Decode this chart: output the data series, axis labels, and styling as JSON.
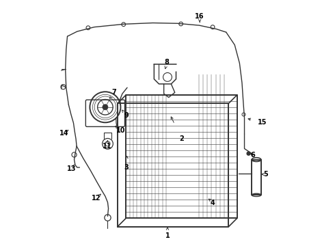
{
  "bg_color": "#ffffff",
  "line_color": "#333333",
  "label_color": "#000000",
  "figsize": [
    4.9,
    3.6
  ],
  "dpi": 100
}
